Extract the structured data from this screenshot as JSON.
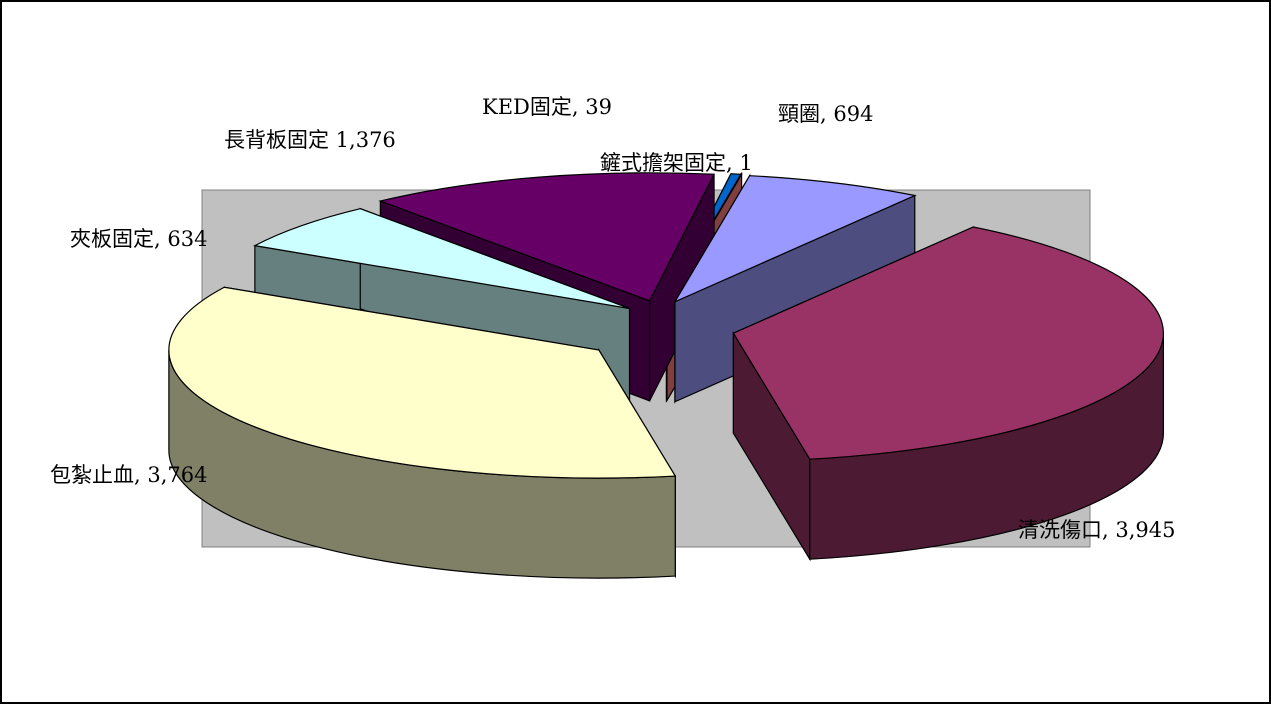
{
  "chart_data": {
    "type": "pie",
    "style": "3d-exploded",
    "plot_background": "#c0c0c0",
    "categories": [
      "頸圈",
      "清洗傷口",
      "包紮止血",
      "夾板固定",
      "長背板固定",
      "KED固定",
      "鏟式擔架固定"
    ],
    "values": [
      694,
      3945,
      3764,
      634,
      1376,
      39,
      1
    ],
    "labels": [
      "頸圈, 694",
      "清洗傷口, 3,945",
      "包紮止血, 3,764",
      "夾板固定, 634",
      "長背板固定 1,376",
      "KED固定, 39",
      "鏟式擔架固定, 1"
    ],
    "colors": [
      "#9999ff",
      "#993366",
      "#ffffcc",
      "#ccffff",
      "#660066",
      "#0066cc",
      "#ff8080"
    ],
    "side_colors": [
      "#4d4d80",
      "#4d1a33",
      "#808066",
      "#668080",
      "#330033",
      "#003366",
      "#804040"
    ]
  }
}
